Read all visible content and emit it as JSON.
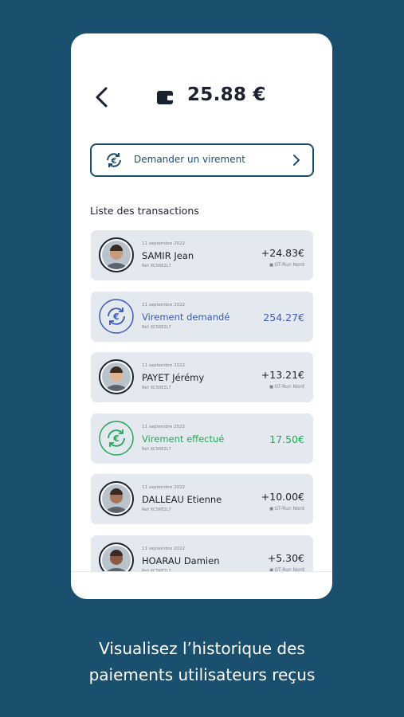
{
  "header": {
    "balance": "25.88 €"
  },
  "request_button": {
    "label": "Demander un virement"
  },
  "transactions_title": "Liste des transactions",
  "transactions": [
    {
      "avatar": true,
      "color": "#1a2230",
      "date": "11 septembre 2022",
      "name": "SAMIR Jean",
      "ref": "Ref: KC5RE2L7",
      "amount": "+24.83€",
      "station": "GT-Run Nord"
    },
    {
      "avatar": false,
      "color": "#3b5bb5",
      "date": "11 septembre 2022",
      "name": "Virement demandé",
      "ref": "Ref: KC5RE2L7",
      "amount": "254.27€"
    },
    {
      "avatar": true,
      "color": "#1a2230",
      "date": "11 septembre 2022",
      "name": "PAYET Jérémy",
      "ref": "Ref: KC5RE2L7",
      "amount": "+13.21€",
      "station": "GT-Run Nord"
    },
    {
      "avatar": false,
      "color": "#27a55a",
      "date": "11 septembre 2022",
      "name": "Virement effectué",
      "ref": "Ref: KC5RE2L7",
      "amount": "17.50€"
    },
    {
      "avatar": true,
      "color": "#1a2230",
      "date": "11 septembre 2022",
      "name": "DALLEAU Etienne",
      "ref": "Ref: KC5RE2L7",
      "amount": "+10.00€",
      "station": "GT-Run Nord"
    },
    {
      "avatar": true,
      "color": "#1a2230",
      "date": "11 septembre 2022",
      "name": "HOARAU Damien",
      "ref": "Ref: KC5RE2L7",
      "amount": "+5.30€",
      "station": "GT-Run Nord"
    }
  ],
  "caption": [
    "Visualisez l’historique des",
    "paiements utilisateurs reçus"
  ]
}
